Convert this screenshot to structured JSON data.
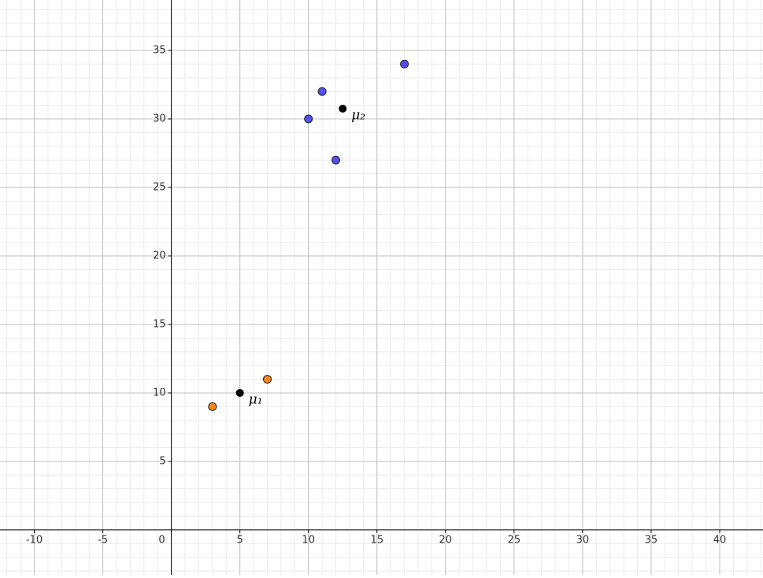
{
  "chart_data": {
    "type": "scatter",
    "xlim": [
      -12.5,
      43.16
    ],
    "ylim": [
      -3.28,
      38.68
    ],
    "xticks": [
      -10,
      -5,
      0,
      5,
      10,
      15,
      20,
      25,
      30,
      35,
      40
    ],
    "yticks": [
      5,
      10,
      15,
      20,
      25,
      30,
      35
    ],
    "grid": true,
    "minor_grid": 1,
    "series": [
      {
        "color": "#f7861f",
        "x": [
          3,
          7
        ],
        "y": [
          9,
          11
        ]
      },
      {
        "color": "#5050f5",
        "x": [
          10,
          11,
          12,
          17
        ],
        "y": [
          30,
          32,
          27,
          34
        ]
      }
    ],
    "centroids": {
      "color": "#000000",
      "x": [
        5,
        12.5
      ],
      "y": [
        10,
        30.75
      ],
      "labels": [
        "μ₁",
        "μ₂"
      ]
    }
  }
}
